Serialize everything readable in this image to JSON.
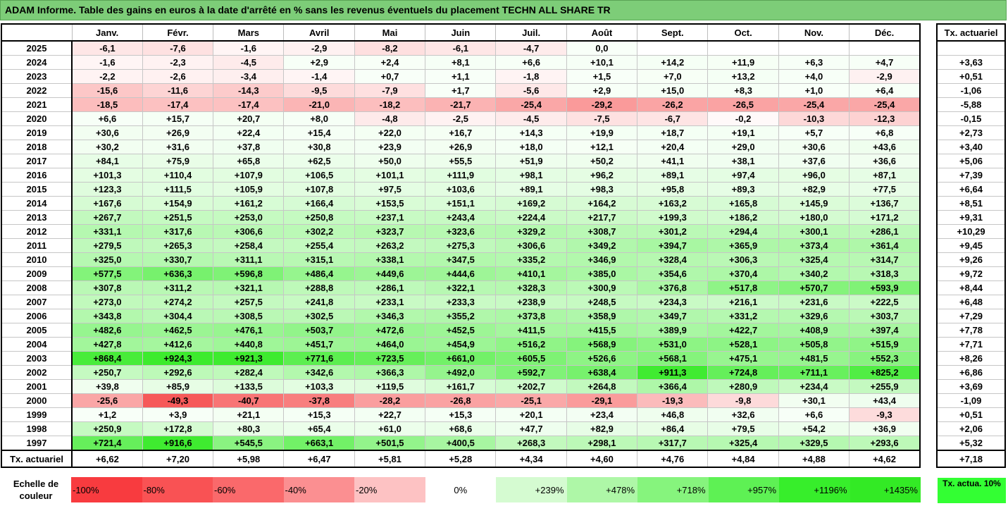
{
  "title": "ADAM Informe. Table des gains en euros à la date d'arrêté en % sans les revenus éventuels du placement TECHN ALL SHARE TR",
  "months": [
    "Janv.",
    "Févr.",
    "Mars",
    "Avril",
    "Mai",
    "Juin",
    "Juil.",
    "Août",
    "Sept.",
    "Oct.",
    "Nov.",
    "Déc."
  ],
  "side_header": "Tx. actuariel",
  "rows": [
    {
      "year": "2025",
      "values": [
        "-6,1",
        "-7,6",
        "-1,6",
        "-2,9",
        "-8,2",
        "-6,1",
        "-4,7",
        "0,0",
        "",
        "",
        "",
        ""
      ],
      "rate": ""
    },
    {
      "year": "2024",
      "values": [
        "-1,6",
        "-2,3",
        "-4,5",
        "+2,9",
        "+2,4",
        "+8,1",
        "+6,6",
        "+10,1",
        "+14,2",
        "+11,9",
        "+6,3",
        "+4,7"
      ],
      "rate": "+3,63"
    },
    {
      "year": "2023",
      "values": [
        "-2,2",
        "-2,6",
        "-3,4",
        "-1,4",
        "+0,7",
        "+1,1",
        "-1,8",
        "+1,5",
        "+7,0",
        "+13,2",
        "+4,0",
        "-2,9"
      ],
      "rate": "+0,51"
    },
    {
      "year": "2022",
      "values": [
        "-15,6",
        "-11,6",
        "-14,3",
        "-9,5",
        "-7,9",
        "+1,7",
        "-5,6",
        "+2,9",
        "+15,0",
        "+8,3",
        "+1,0",
        "+6,4"
      ],
      "rate": "-1,06"
    },
    {
      "year": "2021",
      "values": [
        "-18,5",
        "-17,4",
        "-17,4",
        "-21,0",
        "-18,2",
        "-21,7",
        "-25,4",
        "-29,2",
        "-26,2",
        "-26,5",
        "-25,4",
        "-25,4"
      ],
      "rate": "-5,88"
    },
    {
      "year": "2020",
      "values": [
        "+6,6",
        "+15,7",
        "+20,7",
        "+8,0",
        "-4,8",
        "-2,5",
        "-4,5",
        "-7,5",
        "-6,7",
        "-0,2",
        "-10,3",
        "-12,3"
      ],
      "rate": "-0,15"
    },
    {
      "year": "2019",
      "values": [
        "+30,6",
        "+26,9",
        "+22,4",
        "+15,4",
        "+22,0",
        "+16,7",
        "+14,3",
        "+19,9",
        "+18,7",
        "+19,1",
        "+5,7",
        "+6,8"
      ],
      "rate": "+2,73"
    },
    {
      "year": "2018",
      "values": [
        "+30,2",
        "+31,6",
        "+37,8",
        "+30,8",
        "+23,9",
        "+26,9",
        "+18,0",
        "+12,1",
        "+20,4",
        "+29,0",
        "+30,6",
        "+43,6"
      ],
      "rate": "+3,40"
    },
    {
      "year": "2017",
      "values": [
        "+84,1",
        "+75,9",
        "+65,8",
        "+62,5",
        "+50,0",
        "+55,5",
        "+51,9",
        "+50,2",
        "+41,1",
        "+38,1",
        "+37,6",
        "+36,6"
      ],
      "rate": "+5,06"
    },
    {
      "year": "2016",
      "values": [
        "+101,3",
        "+110,4",
        "+107,9",
        "+106,5",
        "+101,1",
        "+111,9",
        "+98,1",
        "+96,2",
        "+89,1",
        "+97,4",
        "+96,0",
        "+87,1"
      ],
      "rate": "+7,39"
    },
    {
      "year": "2015",
      "values": [
        "+123,3",
        "+111,5",
        "+105,9",
        "+107,8",
        "+97,5",
        "+103,6",
        "+89,1",
        "+98,3",
        "+95,8",
        "+89,3",
        "+82,9",
        "+77,5"
      ],
      "rate": "+6,64"
    },
    {
      "year": "2014",
      "values": [
        "+167,6",
        "+154,9",
        "+161,2",
        "+166,4",
        "+153,5",
        "+151,1",
        "+169,2",
        "+164,2",
        "+163,2",
        "+165,8",
        "+145,9",
        "+136,7"
      ],
      "rate": "+8,51"
    },
    {
      "year": "2013",
      "values": [
        "+267,7",
        "+251,5",
        "+253,0",
        "+250,8",
        "+237,1",
        "+243,4",
        "+224,4",
        "+217,7",
        "+199,3",
        "+186,2",
        "+180,0",
        "+171,2"
      ],
      "rate": "+9,31"
    },
    {
      "year": "2012",
      "values": [
        "+331,1",
        "+317,6",
        "+306,6",
        "+302,2",
        "+323,7",
        "+323,6",
        "+329,2",
        "+308,7",
        "+301,2",
        "+294,4",
        "+300,1",
        "+286,1"
      ],
      "rate": "+10,29"
    },
    {
      "year": "2011",
      "values": [
        "+279,5",
        "+265,3",
        "+258,4",
        "+255,4",
        "+263,2",
        "+275,3",
        "+306,6",
        "+349,2",
        "+394,7",
        "+365,9",
        "+373,4",
        "+361,4"
      ],
      "rate": "+9,45"
    },
    {
      "year": "2010",
      "values": [
        "+325,0",
        "+330,7",
        "+311,1",
        "+315,1",
        "+338,1",
        "+347,5",
        "+335,2",
        "+346,9",
        "+328,4",
        "+306,3",
        "+325,4",
        "+314,7"
      ],
      "rate": "+9,26"
    },
    {
      "year": "2009",
      "values": [
        "+577,5",
        "+636,3",
        "+596,8",
        "+486,4",
        "+449,6",
        "+444,6",
        "+410,1",
        "+385,0",
        "+354,6",
        "+370,4",
        "+340,2",
        "+318,3"
      ],
      "rate": "+9,72"
    },
    {
      "year": "2008",
      "values": [
        "+307,8",
        "+311,2",
        "+321,1",
        "+288,8",
        "+286,1",
        "+322,1",
        "+328,3",
        "+300,9",
        "+376,8",
        "+517,8",
        "+570,7",
        "+593,9"
      ],
      "rate": "+8,44"
    },
    {
      "year": "2007",
      "values": [
        "+273,0",
        "+274,2",
        "+257,5",
        "+241,8",
        "+233,1",
        "+233,3",
        "+238,9",
        "+248,5",
        "+234,3",
        "+216,1",
        "+231,6",
        "+222,5"
      ],
      "rate": "+6,48"
    },
    {
      "year": "2006",
      "values": [
        "+343,8",
        "+304,4",
        "+308,5",
        "+302,5",
        "+346,3",
        "+355,2",
        "+373,8",
        "+358,9",
        "+349,7",
        "+331,2",
        "+329,6",
        "+303,7"
      ],
      "rate": "+7,29"
    },
    {
      "year": "2005",
      "values": [
        "+482,6",
        "+462,5",
        "+476,1",
        "+503,7",
        "+472,6",
        "+452,5",
        "+411,5",
        "+415,5",
        "+389,9",
        "+422,7",
        "+408,9",
        "+397,4"
      ],
      "rate": "+7,78"
    },
    {
      "year": "2004",
      "values": [
        "+427,8",
        "+412,6",
        "+440,8",
        "+451,7",
        "+464,0",
        "+454,9",
        "+516,2",
        "+568,9",
        "+531,0",
        "+528,1",
        "+505,8",
        "+515,9"
      ],
      "rate": "+7,71"
    },
    {
      "year": "2003",
      "values": [
        "+868,4",
        "+924,3",
        "+921,3",
        "+771,6",
        "+723,5",
        "+661,0",
        "+605,5",
        "+526,6",
        "+568,1",
        "+475,1",
        "+481,5",
        "+552,3"
      ],
      "rate": "+8,26"
    },
    {
      "year": "2002",
      "values": [
        "+250,7",
        "+292,6",
        "+282,4",
        "+342,6",
        "+366,3",
        "+492,0",
        "+592,7",
        "+638,4",
        "+911,3",
        "+724,8",
        "+711,1",
        "+825,2"
      ],
      "rate": "+6,86"
    },
    {
      "year": "2001",
      "values": [
        "+39,8",
        "+85,9",
        "+133,5",
        "+103,3",
        "+119,5",
        "+161,7",
        "+202,7",
        "+264,8",
        "+366,4",
        "+280,9",
        "+234,4",
        "+255,9"
      ],
      "rate": "+3,69"
    },
    {
      "year": "2000",
      "values": [
        "-25,6",
        "-49,3",
        "-40,7",
        "-37,8",
        "-28,2",
        "-26,8",
        "-25,1",
        "-29,1",
        "-19,3",
        "-9,8",
        "+30,1",
        "+43,4"
      ],
      "rate": "-1,09"
    },
    {
      "year": "1999",
      "values": [
        "+1,2",
        "+3,9",
        "+21,1",
        "+15,3",
        "+22,7",
        "+15,3",
        "+20,1",
        "+23,4",
        "+46,8",
        "+32,6",
        "+6,6",
        "-9,3"
      ],
      "rate": "+0,51"
    },
    {
      "year": "1998",
      "values": [
        "+250,9",
        "+172,8",
        "+80,3",
        "+65,4",
        "+61,0",
        "+68,6",
        "+47,7",
        "+82,9",
        "+86,4",
        "+79,5",
        "+54,2",
        "+36,9"
      ],
      "rate": "+2,06"
    },
    {
      "year": "1997",
      "values": [
        "+721,4",
        "+916,6",
        "+545,5",
        "+663,1",
        "+501,5",
        "+400,5",
        "+268,3",
        "+298,1",
        "+317,7",
        "+325,4",
        "+329,5",
        "+293,6"
      ],
      "rate": "+5,32"
    }
  ],
  "tx_row": {
    "label": "Tx. actuariel",
    "values": [
      "+6,62",
      "+7,20",
      "+5,98",
      "+6,47",
      "+5,81",
      "+5,28",
      "+4,34",
      "+4,60",
      "+4,76",
      "+4,84",
      "+4,88",
      "+4,62"
    ],
    "rate": "+7,18"
  },
  "scale": {
    "label": "Echelle de couleur",
    "swatches": [
      {
        "text": "-100%",
        "color": "#f83b3f",
        "type": "neg"
      },
      {
        "text": "-80%",
        "color": "#f95254",
        "type": "neg"
      },
      {
        "text": "-60%",
        "color": "#fa696b",
        "type": "neg"
      },
      {
        "text": "-40%",
        "color": "#fb8f91",
        "type": "neg"
      },
      {
        "text": "-20%",
        "color": "#fdc2c3",
        "type": "neg"
      },
      {
        "text": "0%",
        "color": "#ffffff",
        "type": "zero"
      },
      {
        "text": "+239%",
        "color": "#d5fbd1",
        "type": "pos"
      },
      {
        "text": "+478%",
        "color": "#aef7a7",
        "type": "pos"
      },
      {
        "text": "+718%",
        "color": "#86f47d",
        "type": "pos"
      },
      {
        "text": "+957%",
        "color": "#5ef154",
        "type": "pos"
      },
      {
        "text": "+1196%",
        "color": "#37ee2b",
        "type": "pos"
      },
      {
        "text": "+1435%",
        "color": "#33ea25",
        "type": "pos"
      }
    ],
    "ref_label": "Tx. actua. 10%",
    "ref_color": "#33ff33"
  }
}
